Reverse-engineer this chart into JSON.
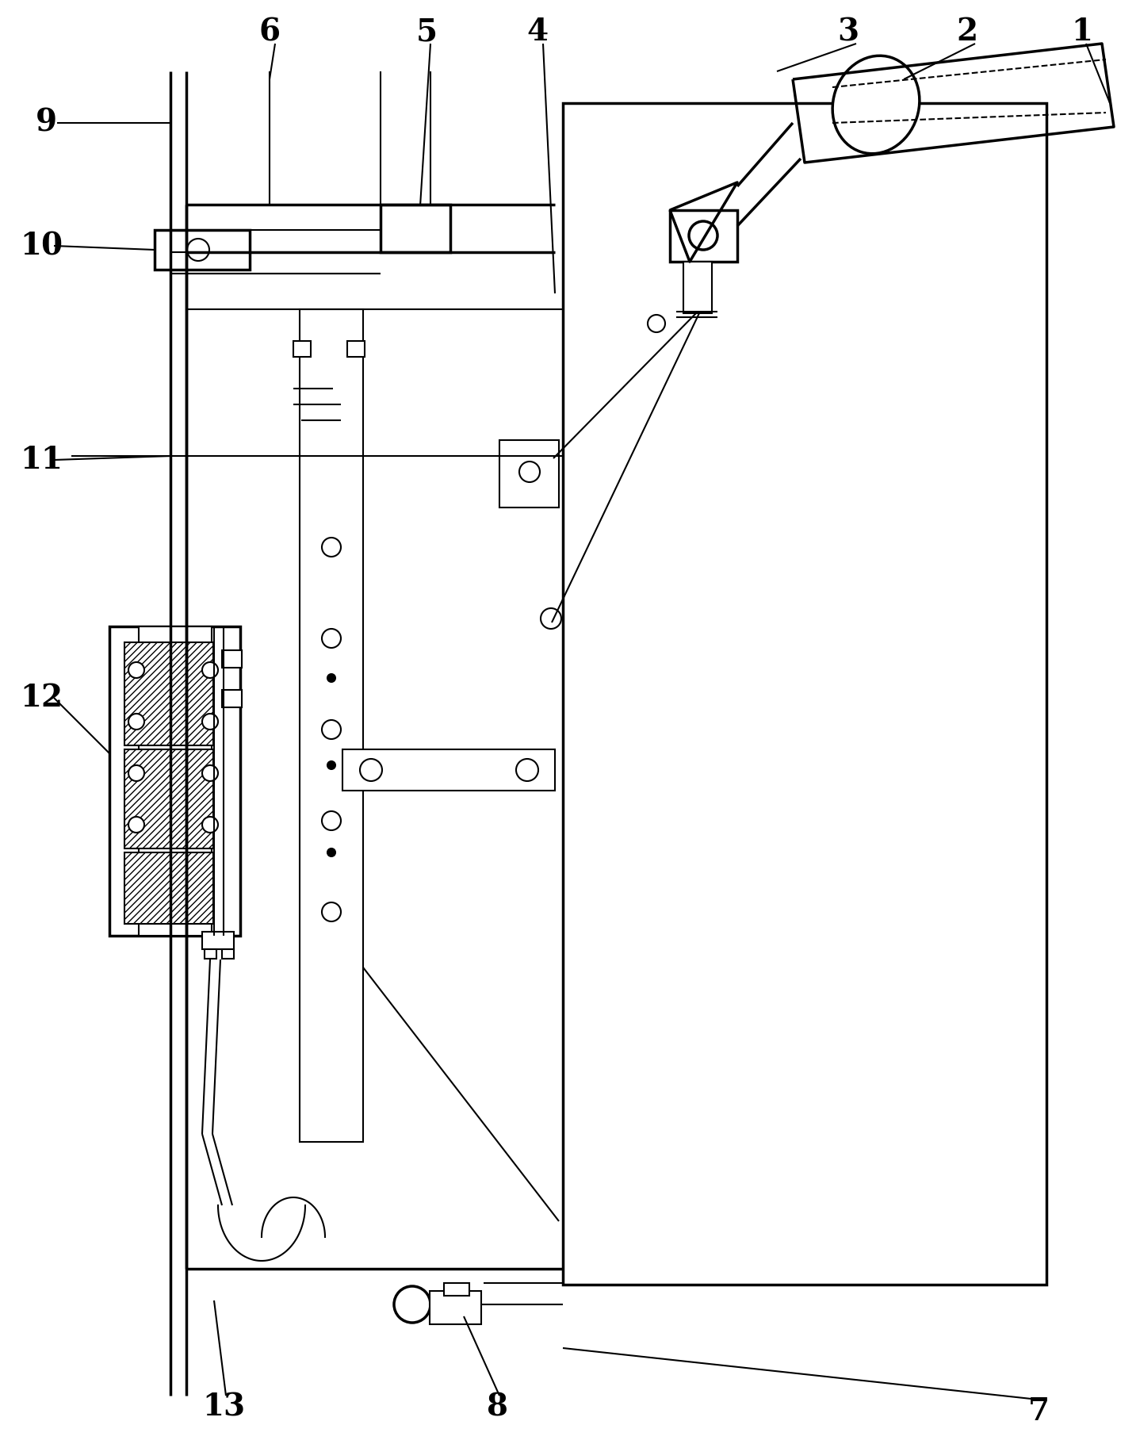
{
  "bg_color": "#ffffff",
  "line_color": "#000000",
  "label_fontsize": 28,
  "lw": 2.0,
  "lw_thick": 2.5,
  "lw_thin": 1.5
}
